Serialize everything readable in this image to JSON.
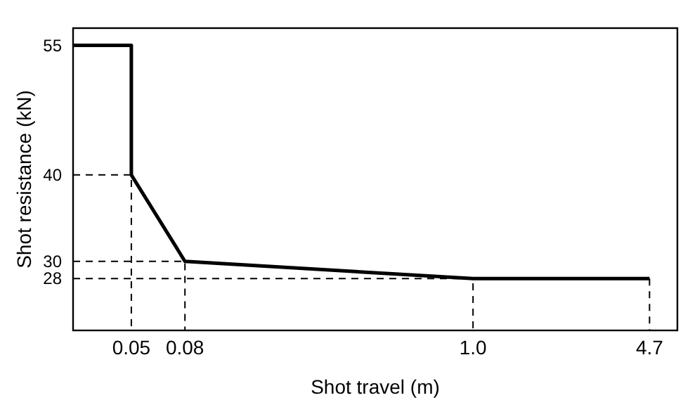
{
  "chart_data": {
    "type": "line",
    "xlabel": "Shot travel (m)",
    "ylabel": "Shot resistance (kN)",
    "log": "x",
    "xlim": [
      0.03,
      6
    ],
    "xticks": [
      0.05,
      0.08,
      {
        "value": 1.0,
        "label": "1.0"
      },
      4.7
    ],
    "ylim": [
      22,
      57
    ],
    "yticks": [
      28,
      30,
      40,
      55
    ],
    "grid": false,
    "marker": "none",
    "series": [
      {
        "color": "#000000",
        "line_style": "solid",
        "x": [
          0.03,
          0.05,
          0.05,
          0.08,
          1.0,
          4.7
        ],
        "values": [
          55,
          55,
          40,
          30,
          28,
          28
        ]
      },
      {
        "color": "#000000",
        "line_style": "dashed",
        "x": [
          0.03,
          0.05,
          0.05
        ],
        "values": [
          40,
          40,
          22
        ]
      },
      {
        "color": "#000000",
        "line_style": "dashed",
        "x": [
          0.03,
          0.08,
          0.08
        ],
        "values": [
          30,
          30,
          22
        ]
      },
      {
        "color": "#000000",
        "line_style": "dashed",
        "x": [
          0.03,
          1.0,
          1.0
        ],
        "values": [
          28,
          28,
          22
        ]
      },
      {
        "color": "#000000",
        "line_style": "dashed",
        "x": [
          4.7,
          4.7
        ],
        "values": [
          28,
          22
        ]
      }
    ]
  }
}
